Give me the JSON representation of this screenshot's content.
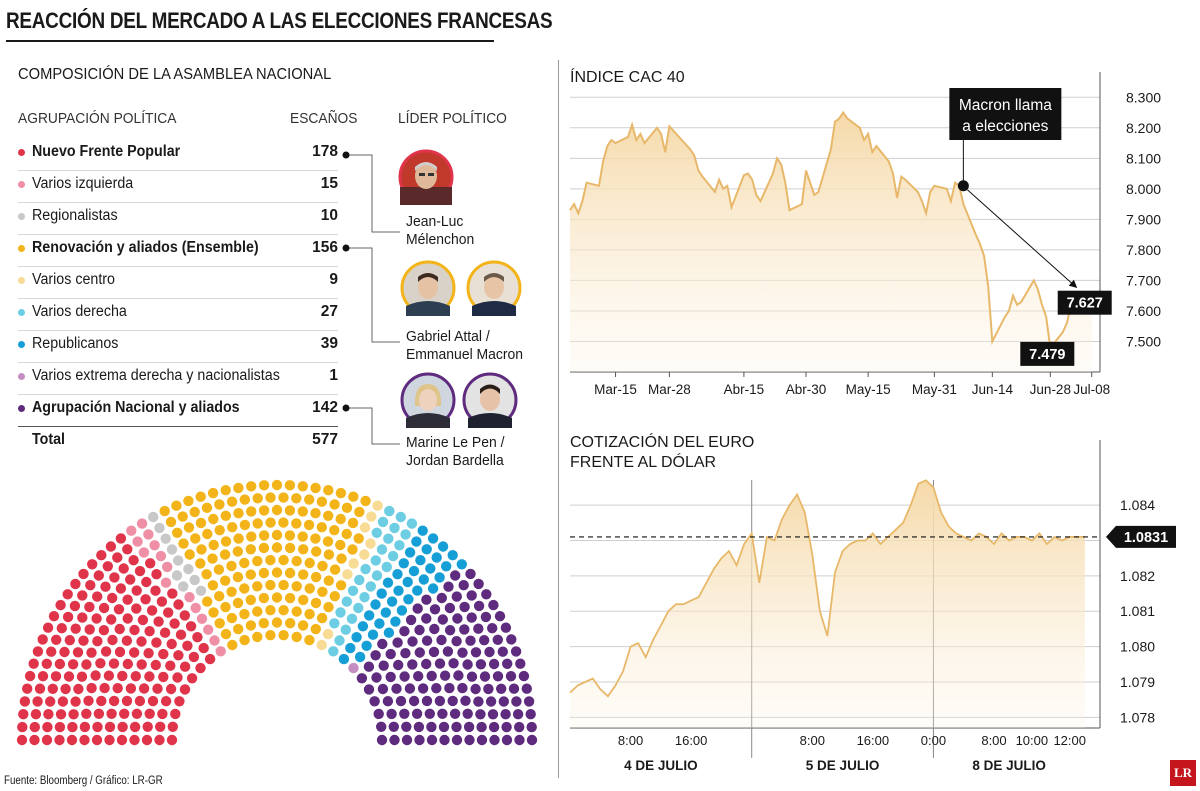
{
  "title": "REACCIÓN DEL MERCADO A LAS ELECCIONES FRANCESAS",
  "assembly": {
    "title": "COMPOSICIÓN DE LA ASAMBLEA NACIONAL",
    "headers": {
      "party": "AGRUPACIÓN POLÍTICA",
      "seats": "ESCAÑOS",
      "leader": "LÍDER POLÍTICO"
    },
    "parties": [
      {
        "name": "Nuevo Frente Popular",
        "seats": "178",
        "color": "#e0344a",
        "bold": true
      },
      {
        "name": "Varios izquierda",
        "seats": "15",
        "color": "#ef8fa6",
        "bold": false
      },
      {
        "name": "Regionalistas",
        "seats": "10",
        "color": "#c8c8c8",
        "bold": false
      },
      {
        "name": "Renovación y aliados (Ensemble)",
        "seats": "156",
        "color": "#f2b418",
        "bold": true
      },
      {
        "name": "Varios centro",
        "seats": "9",
        "color": "#f8dc95",
        "bold": false
      },
      {
        "name": "Varios derecha",
        "seats": "27",
        "color": "#6ccde3",
        "bold": false
      },
      {
        "name": "Republicanos",
        "seats": "39",
        "color": "#169fd6",
        "bold": false
      },
      {
        "name": "Varios extrema derecha y nacionalistas",
        "seats": "1",
        "color": "#c58ec2",
        "bold": false
      },
      {
        "name": "Agrupación Nacional y aliados",
        "seats": "142",
        "color": "#5e2b7e",
        "bold": true
      }
    ],
    "total": {
      "label": "Total",
      "seats": "577"
    },
    "leaders": [
      {
        "name_line1": "Jean-Luc",
        "name_line2": "Mélenchon"
      },
      {
        "name_line1": "Gabriel Attal /",
        "name_line2": "Emmanuel Macron"
      },
      {
        "name_line1": "Marine Le Pen /",
        "name_line2": "Jordan Bardella"
      }
    ]
  },
  "source": "Fuente: Bloomberg / Gráfico: LR-GR",
  "logo": "LR",
  "chart_data": [
    {
      "type": "area",
      "title": "ÍNDICE CAC 40",
      "color": "#e8b86a",
      "ylim": [
        7400,
        8350
      ],
      "y_ticks": [
        8300,
        8200,
        8100,
        8000,
        7900,
        7800,
        7700,
        7600,
        7500
      ],
      "y_tick_labels": [
        "8.300",
        "8.200",
        "8.100",
        "8.000",
        "7.900",
        "7.800",
        "7.700",
        "7.600",
        "7.500"
      ],
      "x_ticks": [
        "2024-03-15",
        "2024-03-28",
        "2024-04-15",
        "2024-04-30",
        "2024-05-15",
        "2024-05-31",
        "2024-06-14",
        "2024-06-28",
        "2024-07-08"
      ],
      "x_tick_labels": [
        "Mar-15",
        "Mar-28",
        "Abr-15",
        "Abr-30",
        "May-15",
        "May-31",
        "Jun-14",
        "Jun-28",
        "Jul-08"
      ],
      "x": [
        "2024-03-04",
        "2024-03-05",
        "2024-03-06",
        "2024-03-07",
        "2024-03-08",
        "2024-03-11",
        "2024-03-12",
        "2024-03-13",
        "2024-03-14",
        "2024-03-15",
        "2024-03-18",
        "2024-03-19",
        "2024-03-20",
        "2024-03-21",
        "2024-03-22",
        "2024-03-25",
        "2024-03-26",
        "2024-03-27",
        "2024-03-28",
        "2024-04-02",
        "2024-04-03",
        "2024-04-04",
        "2024-04-05",
        "2024-04-08",
        "2024-04-09",
        "2024-04-10",
        "2024-04-11",
        "2024-04-12",
        "2024-04-15",
        "2024-04-16",
        "2024-04-17",
        "2024-04-18",
        "2024-04-19",
        "2024-04-22",
        "2024-04-23",
        "2024-04-24",
        "2024-04-25",
        "2024-04-26",
        "2024-04-29",
        "2024-04-30",
        "2024-05-02",
        "2024-05-03",
        "2024-05-06",
        "2024-05-07",
        "2024-05-08",
        "2024-05-09",
        "2024-05-10",
        "2024-05-13",
        "2024-05-14",
        "2024-05-15",
        "2024-05-16",
        "2024-05-17",
        "2024-05-20",
        "2024-05-21",
        "2024-05-22",
        "2024-05-23",
        "2024-05-24",
        "2024-05-27",
        "2024-05-28",
        "2024-05-29",
        "2024-05-30",
        "2024-05-31",
        "2024-06-03",
        "2024-06-04",
        "2024-06-05",
        "2024-06-06",
        "2024-06-07",
        "2024-06-10",
        "2024-06-11",
        "2024-06-12",
        "2024-06-13",
        "2024-06-14",
        "2024-06-17",
        "2024-06-18",
        "2024-06-19",
        "2024-06-20",
        "2024-06-21",
        "2024-06-24",
        "2024-06-25",
        "2024-06-26",
        "2024-06-27",
        "2024-06-28",
        "2024-07-01",
        "2024-07-02",
        "2024-07-03",
        "2024-07-04",
        "2024-07-05",
        "2024-07-08"
      ],
      "values": [
        7930,
        7950,
        7920,
        7960,
        8020,
        8010,
        8090,
        8140,
        8160,
        8150,
        8170,
        8210,
        8160,
        8180,
        8150,
        8200,
        8180,
        8120,
        8205,
        8130,
        8110,
        8060,
        8040,
        7990,
        8030,
        8000,
        8010,
        7940,
        8045,
        8050,
        8030,
        7980,
        7960,
        8050,
        8100,
        8080,
        8020,
        7930,
        7950,
        8060,
        7980,
        7990,
        8130,
        8220,
        8230,
        8250,
        8230,
        8200,
        8160,
        8180,
        8120,
        8140,
        8090,
        8050,
        7970,
        8040,
        8030,
        7990,
        7960,
        7920,
        7990,
        8010,
        8000,
        7960,
        8020,
        8010,
        7950,
        7850,
        7820,
        7780,
        7680,
        7500,
        7580,
        7600,
        7650,
        7620,
        7630,
        7700,
        7670,
        7620,
        7580,
        7479,
        7530,
        7560,
        7620,
        7650,
        7630,
        7627
      ],
      "annotations": [
        {
          "text_line1": "Macron llama",
          "text_line2": "a elecciones",
          "x": "2024-06-07",
          "y": 8010
        },
        {
          "text": "7.627",
          "x": "2024-07-08",
          "y": 7627
        },
        {
          "text": "7.479",
          "x": "2024-06-28",
          "y": 7479
        }
      ]
    },
    {
      "type": "area",
      "title_line1": "COTIZACIÓN DEL EURO",
      "title_line2": "FRENTE AL DÓLAR",
      "color": "#e8b86a",
      "ylim": [
        1.0777,
        1.0855
      ],
      "y_ticks": [
        1.084,
        1.083,
        1.082,
        1.081,
        1.08,
        1.079,
        1.078
      ],
      "y_tick_labels": [
        "1.084",
        "1.083",
        "1.082",
        "1.081",
        "1.080",
        "1.079",
        "1.078"
      ],
      "x_unit": "hours since 00:00 4 de julio",
      "day_labels": [
        "4 DE JULIO",
        "5 DE JULIO",
        "8 DE JULIO"
      ],
      "time_tick_labels": [
        "8:00",
        "16:00",
        "8:00",
        "16:00",
        "0:00",
        "8:00",
        "10:00",
        "12:00"
      ],
      "reference_value": 1.0831,
      "reference_label": "1.0831",
      "series_note": "intraday, approximate",
      "x": [
        0,
        1,
        2,
        3,
        4,
        5,
        6,
        7,
        8,
        9,
        10,
        11,
        12,
        13,
        14,
        15,
        16,
        17,
        18,
        19,
        20,
        21,
        22,
        23,
        24,
        25,
        26,
        27,
        28,
        29,
        30,
        31,
        32,
        33,
        34,
        35,
        36,
        37,
        38,
        39,
        40,
        41,
        42,
        43,
        44,
        45,
        46,
        47,
        48,
        49,
        50,
        51,
        52,
        53,
        54,
        55,
        56,
        57,
        58,
        59,
        60,
        61,
        62,
        63,
        64,
        65,
        66,
        67,
        68
      ],
      "values": [
        1.0787,
        1.0789,
        1.079,
        1.0791,
        1.0788,
        1.0786,
        1.0789,
        1.0793,
        1.08,
        1.0801,
        1.0797,
        1.0802,
        1.0806,
        1.081,
        1.0812,
        1.0812,
        1.0813,
        1.0814,
        1.0818,
        1.0822,
        1.0825,
        1.0827,
        1.0823,
        1.0829,
        1.0832,
        1.0818,
        1.0831,
        1.083,
        1.0836,
        1.084,
        1.0843,
        1.0838,
        1.0826,
        1.081,
        1.0803,
        1.0821,
        1.0827,
        1.0829,
        1.083,
        1.083,
        1.0832,
        1.0829,
        1.0831,
        1.0833,
        1.0835,
        1.084,
        1.0846,
        1.0847,
        1.0845,
        1.0838,
        1.0834,
        1.0832,
        1.0831,
        1.083,
        1.0832,
        1.0831,
        1.0829,
        1.0832,
        1.083,
        1.0831,
        1.0831,
        1.083,
        1.0832,
        1.0829,
        1.0831,
        1.083,
        1.0831,
        1.0831,
        1.0831
      ]
    },
    {
      "type": "hemicycle",
      "title": "COMPOSICIÓN DE LA ASAMBLEA NACIONAL",
      "categories": [
        "Nuevo Frente Popular",
        "Varios izquierda",
        "Regionalistas",
        "Renovación y aliados (Ensemble)",
        "Varios centro",
        "Varios derecha",
        "Republicanos",
        "Varios extrema derecha y nacionalistas",
        "Agrupación Nacional y aliados"
      ],
      "values": [
        178,
        15,
        10,
        156,
        9,
        27,
        39,
        1,
        142
      ],
      "total": 577
    }
  ]
}
